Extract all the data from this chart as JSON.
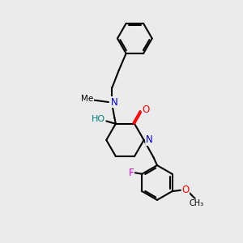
{
  "bg_color": "#ebebeb",
  "bond_color": "#000000",
  "N_color": "#0000cc",
  "O_color": "#ff0000",
  "F_color": "#cc00cc",
  "OH_color": "#008080",
  "line_width": 1.5,
  "figsize": [
    3.0,
    3.0
  ],
  "dpi": 100,
  "xlim": [
    0,
    10
  ],
  "ylim": [
    0,
    10
  ]
}
